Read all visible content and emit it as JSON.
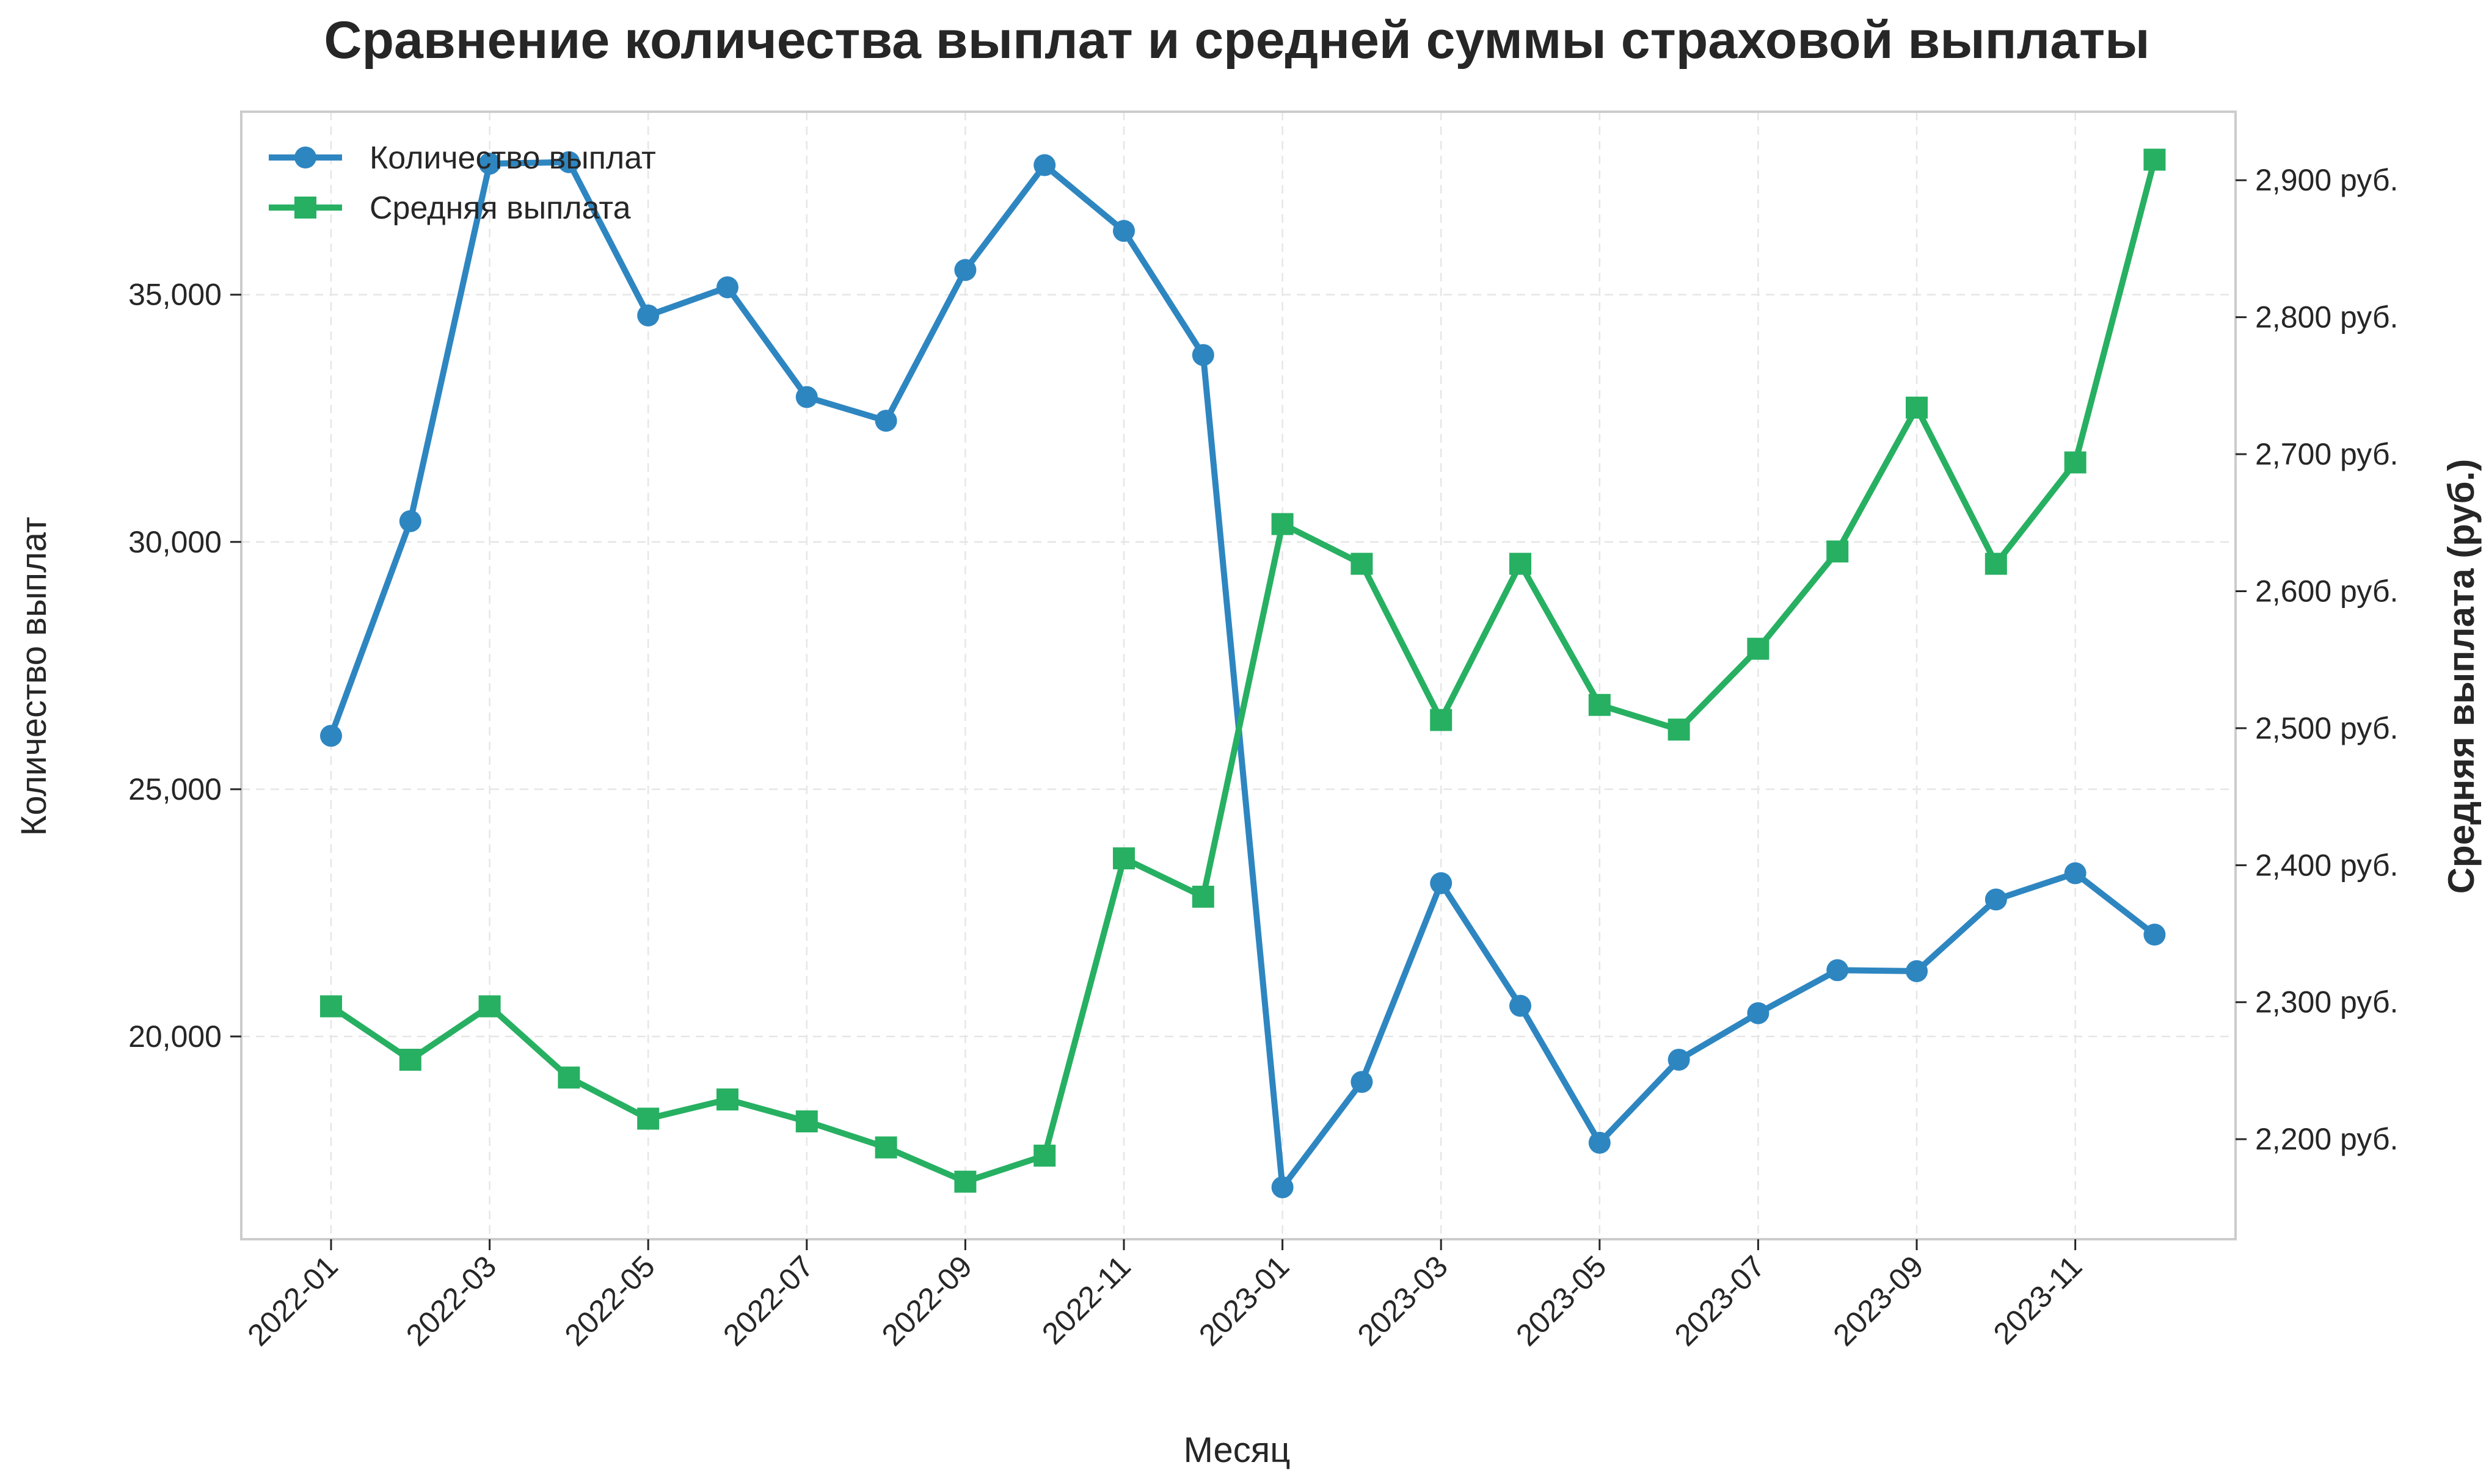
{
  "chart_data": {
    "type": "line",
    "title": "Сравнение количества выплат и средней суммы страховой выплаты",
    "xlabel": "Месяц",
    "ylabel_left": "Количество выплат",
    "ylabel_right": "Средняя выплата (руб.)",
    "x": [
      "2022-01",
      "2022-02",
      "2022-03",
      "2022-04",
      "2022-05",
      "2022-06",
      "2022-07",
      "2022-08",
      "2022-09",
      "2022-10",
      "2022-11",
      "2022-12",
      "2023-01",
      "2023-02",
      "2023-03",
      "2023-04",
      "2023-05",
      "2023-06",
      "2023-07",
      "2023-08",
      "2023-09",
      "2023-10",
      "2023-11",
      "2023-12"
    ],
    "x_tick_labels": [
      "2022-01",
      "2022-03",
      "2022-05",
      "2022-07",
      "2022-09",
      "2022-11",
      "2023-01",
      "2023-03",
      "2023-05",
      "2023-07",
      "2023-09",
      "2023-11"
    ],
    "y_left_ticks": [
      "20,000",
      "25,000",
      "30,000",
      "35,000"
    ],
    "y_right_ticks": [
      "2,200 руб.",
      "2,300 руб.",
      "2,400 руб.",
      "2,500 руб.",
      "2,600 руб.",
      "2,700 руб.",
      "2,800 руб.",
      "2,900 руб."
    ],
    "ylim_left": [
      15900,
      38700
    ],
    "ylim_right": [
      2127,
      2950
    ],
    "grid": true,
    "legend_position": "top-left",
    "series": [
      {
        "name": "Количество выплат",
        "axis": "left",
        "marker": "circle",
        "color": "#2e86c1",
        "values": [
          26080,
          30420,
          37650,
          37680,
          34580,
          35150,
          32930,
          32450,
          35500,
          37620,
          36290,
          33780,
          16950,
          19080,
          23100,
          20620,
          17850,
          19530,
          20470,
          21340,
          21320,
          22770,
          23300,
          22060
        ]
      },
      {
        "name": "Средняя выплата",
        "axis": "right",
        "marker": "square",
        "color": "#27b062",
        "values": [
          2297,
          2258,
          2297,
          2245,
          2215,
          2229,
          2213,
          2194,
          2169,
          2188,
          2405,
          2377,
          2649,
          2620,
          2506,
          2620,
          2517,
          2499,
          2558,
          2629,
          2734,
          2620,
          2694,
          2915
        ]
      }
    ]
  }
}
